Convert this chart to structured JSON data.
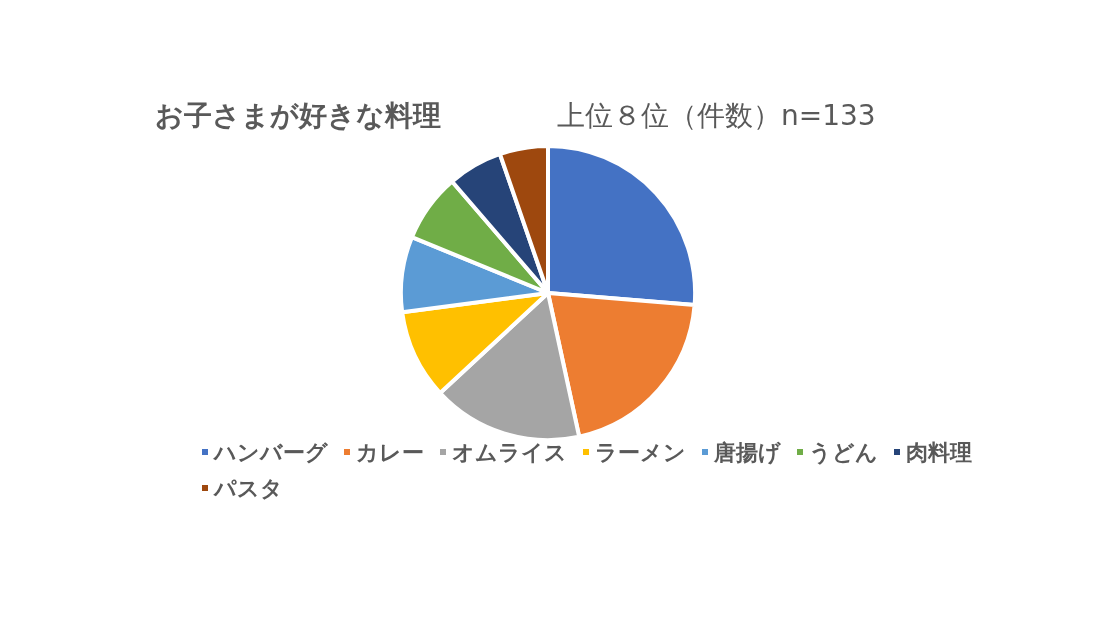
{
  "chart_data": {
    "type": "pie",
    "title": "お子さまが好きな料理",
    "subtitle": "上位８位（件数）n=133",
    "categories": [
      "ハンバーグ",
      "カレー",
      "オムライス",
      "ラーメン",
      "唐揚げ",
      "うどん",
      "肉料理",
      "パスタ"
    ],
    "values": [
      26.3,
      20.3,
      16.5,
      9.8,
      8.3,
      7.5,
      6.0,
      5.3
    ],
    "colors": [
      "#4472c4",
      "#ed7d31",
      "#a5a5a5",
      "#ffc000",
      "#5b9bd5",
      "#70ad47",
      "#264478",
      "#9e480e"
    ],
    "legend": "bottom"
  }
}
